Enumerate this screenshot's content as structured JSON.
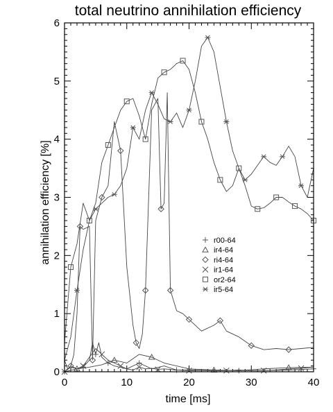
{
  "chart_data": {
    "type": "line",
    "title": "total neutrino annihilation efficiency",
    "xlabel": "time [ms]",
    "ylabel": "annihilation efficiency [%]",
    "xlim": [
      0,
      40
    ],
    "ylim": [
      0,
      6
    ],
    "xticks": [
      "0",
      "10",
      "20",
      "30",
      "40"
    ],
    "yticks": [
      "0",
      "1",
      "2",
      "3",
      "4",
      "5",
      "6"
    ],
    "grid": false,
    "legend_position": "center-right",
    "series": [
      {
        "name": "r00-64",
        "marker": "plus",
        "x": [
          0,
          1,
          2,
          3,
          4,
          4.5,
          5,
          5.5,
          6,
          7,
          8,
          10,
          12,
          14,
          16,
          18,
          20,
          24,
          28,
          32,
          36,
          40
        ],
        "y": [
          0,
          0.1,
          0.05,
          0.08,
          0.2,
          0.5,
          0.3,
          0.5,
          0.25,
          0.15,
          0.1,
          0.05,
          0.15,
          0.05,
          0.1,
          0.03,
          0.03,
          0.02,
          0.02,
          0.02,
          0.03,
          0.05
        ]
      },
      {
        "name": "ir4-64",
        "marker": "triangle",
        "x": [
          0,
          2,
          4,
          6,
          8,
          10,
          12,
          14,
          16,
          20,
          24,
          28,
          32,
          36,
          40
        ],
        "y": [
          0,
          0.05,
          0.08,
          0.12,
          0.2,
          0.15,
          0.3,
          0.25,
          0.15,
          0.05,
          0.03,
          0.02,
          0.05,
          0.07,
          0.08
        ]
      },
      {
        "name": "ri4-64",
        "marker": "diamond",
        "x": [
          0,
          0.5,
          1,
          1.5,
          2,
          2.5,
          3,
          4,
          4.5,
          5,
          5.5,
          6,
          7,
          8,
          9,
          10,
          11,
          11.5,
          12,
          12.5,
          13,
          14,
          15,
          15.5,
          16,
          16.5,
          17,
          18,
          19,
          20,
          22,
          24,
          25,
          26,
          28,
          30,
          32,
          34,
          36,
          38,
          40
        ],
        "y": [
          0.2,
          0.05,
          0.1,
          0.3,
          1.0,
          2.5,
          2.45,
          2.5,
          0.2,
          2.6,
          2.8,
          3.0,
          3.2,
          4.3,
          3.8,
          1.8,
          0.8,
          0.5,
          0.4,
          0.65,
          1.4,
          4.5,
          4.7,
          2.8,
          2.9,
          4.8,
          1.4,
          1.05,
          1.0,
          0.9,
          0.7,
          0.8,
          0.88,
          0.7,
          0.6,
          0.45,
          0.38,
          0.4,
          0.38,
          0.4,
          0.42
        ]
      },
      {
        "name": "ir1-64",
        "marker": "x",
        "x": [
          0,
          1,
          2,
          3,
          4,
          5,
          6,
          7,
          8,
          9,
          10,
          11,
          12,
          13,
          14,
          15,
          16,
          18,
          20,
          22,
          24,
          26,
          28,
          30,
          32,
          34,
          36,
          38,
          40
        ],
        "y": [
          0,
          0.08,
          0.05,
          0.1,
          0.25,
          0.4,
          0.3,
          0.2,
          0.15,
          0.1,
          0.05,
          0.03,
          0.08,
          0.05,
          0.06,
          0.04,
          0.05,
          0.03,
          0.02,
          0.02,
          0.02,
          0.02,
          0.03,
          0.02,
          0.02,
          0.03,
          0.05,
          0.06,
          0.08
        ]
      },
      {
        "name": "or2-64",
        "marker": "square",
        "x": [
          0,
          1,
          2,
          3,
          4,
          5,
          6,
          7,
          8,
          9,
          10,
          11,
          12,
          13,
          14,
          15,
          16,
          17,
          18,
          19,
          20,
          21,
          22,
          23,
          24,
          25,
          26,
          27,
          28,
          29,
          30,
          31,
          32,
          33,
          34,
          35,
          36,
          37,
          38,
          39,
          40
        ],
        "y": [
          0.5,
          1.8,
          2.2,
          2.9,
          2.6,
          2.9,
          3.6,
          3.9,
          4.2,
          4.5,
          4.65,
          4.7,
          4.4,
          4.0,
          4.6,
          5.05,
          5.15,
          5.2,
          5.3,
          5.35,
          5.2,
          4.8,
          4.3,
          4.0,
          3.6,
          3.3,
          3.1,
          3.2,
          3.5,
          3.2,
          2.85,
          2.8,
          2.82,
          2.9,
          3.0,
          3.0,
          2.92,
          2.85,
          2.8,
          2.72,
          2.6
        ]
      },
      {
        "name": "ir5-64",
        "marker": "asterisk",
        "x": [
          0,
          1,
          2,
          3,
          4,
          5,
          6,
          7,
          8,
          9,
          10,
          11,
          12,
          13,
          14,
          15,
          16,
          17,
          18,
          19,
          20,
          21,
          22,
          23,
          24,
          25,
          26,
          27,
          28,
          29,
          30,
          31,
          32,
          33,
          34,
          35,
          36,
          37,
          38,
          39,
          40
        ],
        "y": [
          0.2,
          0.6,
          1.4,
          2.1,
          2.6,
          2.8,
          2.9,
          3.0,
          3.05,
          3.2,
          3.5,
          4.2,
          4.0,
          4.5,
          4.8,
          4.6,
          4.35,
          4.3,
          4.45,
          4.2,
          4.5,
          5.0,
          5.6,
          5.75,
          5.5,
          4.9,
          4.3,
          3.8,
          3.5,
          3.3,
          3.4,
          3.55,
          3.7,
          3.6,
          3.55,
          3.7,
          3.88,
          3.7,
          3.2,
          3.0,
          3.5
        ]
      }
    ]
  }
}
